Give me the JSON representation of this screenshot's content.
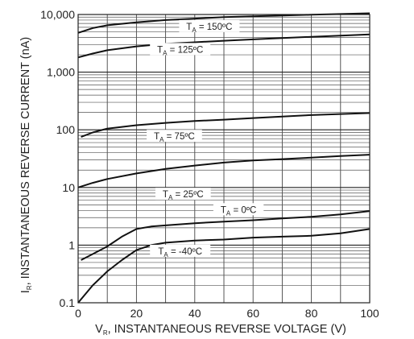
{
  "chart_data": {
    "type": "line",
    "title": "",
    "xlabel_main": "V",
    "xlabel_sub": "R",
    "xlabel_rest": ", INSTANTANEOUS REVERSE VOLTAGE (V)",
    "ylabel_main": "I",
    "ylabel_sub": "R",
    "ylabel_rest": ", INSTANTANEOUS REVERSE CURRENT (nA)",
    "xlim": [
      0,
      100
    ],
    "ylim": [
      0.1,
      10000
    ],
    "yscale": "log",
    "grid": true,
    "x_ticks": [
      0,
      20,
      40,
      60,
      80,
      100
    ],
    "x_tick_labels": [
      "0",
      "20",
      "40",
      "60",
      "80",
      "100"
    ],
    "y_ticks": [
      0.1,
      1,
      10,
      100,
      1000,
      10000
    ],
    "y_tick_labels": [
      "0.1",
      "1",
      "10",
      "100",
      "1,000",
      "10,000"
    ],
    "series": [
      {
        "label_main": "T",
        "label_sub": "A",
        "label_rest": " = 150ºC",
        "x": [
          0,
          5,
          10,
          20,
          30,
          40,
          50,
          60,
          70,
          80,
          90,
          100
        ],
        "y": [
          4800,
          5800,
          6500,
          7300,
          8000,
          8500,
          9000,
          9300,
          9600,
          9900,
          10200,
          10500
        ]
      },
      {
        "label_main": "T",
        "label_sub": "A",
        "label_rest": " = 125ºC",
        "x": [
          0,
          5,
          10,
          20,
          30,
          40,
          50,
          60,
          70,
          80,
          90,
          100
        ],
        "y": [
          1800,
          2100,
          2400,
          2800,
          3100,
          3300,
          3500,
          3700,
          3900,
          4100,
          4300,
          4500
        ]
      },
      {
        "label_main": "T",
        "label_sub": "A",
        "label_rest": " = 75ºC",
        "x": [
          1,
          5,
          10,
          20,
          30,
          40,
          50,
          60,
          70,
          80,
          90,
          100
        ],
        "y": [
          75,
          90,
          105,
          120,
          132,
          142,
          150,
          160,
          170,
          180,
          188,
          195
        ]
      },
      {
        "label_main": "T",
        "label_sub": "A",
        "label_rest": " = 25ºC",
        "x": [
          0,
          5,
          10,
          20,
          30,
          40,
          50,
          60,
          70,
          80,
          90,
          100
        ],
        "y": [
          10,
          12,
          14,
          17.5,
          21,
          24,
          27,
          29.5,
          31,
          33,
          35,
          37
        ]
      },
      {
        "label_main": "T",
        "label_sub": "A",
        "label_rest": " = 0ºC",
        "x": [
          1,
          5,
          10,
          15,
          20,
          25,
          30,
          40,
          50,
          60,
          70,
          80,
          90,
          100
        ],
        "y": [
          0.55,
          0.7,
          0.95,
          1.4,
          1.9,
          2.1,
          2.2,
          2.4,
          2.55,
          2.7,
          2.9,
          3.1,
          3.4,
          3.9
        ]
      },
      {
        "label_main": "T",
        "label_sub": "A",
        "label_rest": " = -40ºC",
        "x": [
          0,
          5,
          10,
          15,
          20,
          25,
          30,
          40,
          50,
          60,
          70,
          80,
          90,
          100
        ],
        "y": [
          0.1,
          0.2,
          0.35,
          0.55,
          0.82,
          1.0,
          1.1,
          1.2,
          1.25,
          1.35,
          1.4,
          1.45,
          1.6,
          1.9
        ]
      }
    ]
  }
}
